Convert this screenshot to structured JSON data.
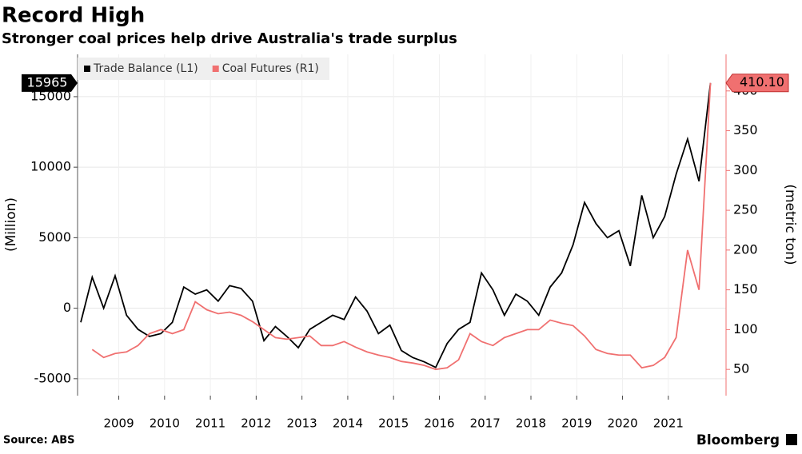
{
  "chart_data": {
    "type": "line",
    "title": "Record High",
    "subtitle": "Stronger coal prices help drive Australia's trade surplus",
    "ylabel": "(Million)",
    "y2label": "(metric ton)",
    "source": "Source: ABS",
    "brand": "Bloomberg",
    "grid": true,
    "legend": "top-left",
    "x": [
      2008.17,
      2008.42,
      2008.67,
      2008.92,
      2009.17,
      2009.42,
      2009.67,
      2009.92,
      2010.17,
      2010.42,
      2010.67,
      2010.92,
      2011.17,
      2011.42,
      2011.67,
      2011.92,
      2012.17,
      2012.42,
      2012.67,
      2012.92,
      2013.17,
      2013.42,
      2013.67,
      2013.92,
      2014.17,
      2014.42,
      2014.67,
      2014.92,
      2015.17,
      2015.42,
      2015.67,
      2015.92,
      2016.17,
      2016.42,
      2016.67,
      2016.92,
      2017.17,
      2017.42,
      2017.67,
      2017.92,
      2018.17,
      2018.42,
      2018.67,
      2018.92,
      2019.17,
      2019.42,
      2019.67,
      2019.92,
      2020.17,
      2020.42,
      2020.67,
      2020.92,
      2021.17,
      2021.42,
      2021.67,
      2021.92
    ],
    "series": [
      {
        "name": "Trade Balance (L1)",
        "color": "#000000",
        "axis": "y",
        "values": [
          -1000,
          2200,
          0,
          2300,
          -500,
          -1500,
          -2000,
          -1800,
          -1000,
          1500,
          1000,
          1300,
          500,
          1600,
          1400,
          500,
          -2300,
          -1300,
          -2000,
          -2800,
          -1500,
          -1000,
          -500,
          -800,
          800,
          -200,
          -1800,
          -1200,
          -3000,
          -3500,
          -3800,
          -4200,
          -2500,
          -1500,
          -1000,
          2500,
          1300,
          -500,
          1000,
          500,
          -500,
          1500,
          2500,
          4500,
          7500,
          6000,
          5000,
          5500,
          3000,
          8000,
          5000,
          6500,
          9500,
          12000,
          9000,
          15965
        ],
        "value_labels": {
          "55": "15965"
        }
      },
      {
        "name": "Coal Futures (R1)",
        "color": "#f07070",
        "axis": "y2",
        "values": [
          null,
          75,
          65,
          70,
          72,
          80,
          95,
          100,
          95,
          100,
          135,
          125,
          120,
          122,
          118,
          110,
          100,
          90,
          88,
          90,
          92,
          80,
          80,
          85,
          78,
          72,
          68,
          65,
          60,
          58,
          55,
          50,
          52,
          62,
          95,
          85,
          80,
          90,
          95,
          100,
          100,
          112,
          108,
          105,
          92,
          75,
          70,
          68,
          68,
          52,
          55,
          65,
          90,
          200,
          150,
          410.1
        ],
        "value_labels": {
          "55": "410.10"
        }
      }
    ],
    "xlim": [
      2008.1,
      2022.26
    ],
    "xticks": [
      2009,
      2010,
      2011,
      2012,
      2013,
      2014,
      2015,
      2016,
      2017,
      2018,
      2019,
      2020,
      2021
    ],
    "ylim": [
      -6200,
      18000
    ],
    "yticks": [
      -5000,
      0,
      5000,
      10000,
      15000
    ],
    "y2lim": [
      17,
      446
    ],
    "y2ticks": [
      50,
      100,
      150,
      200,
      250,
      300,
      350,
      400
    ]
  }
}
